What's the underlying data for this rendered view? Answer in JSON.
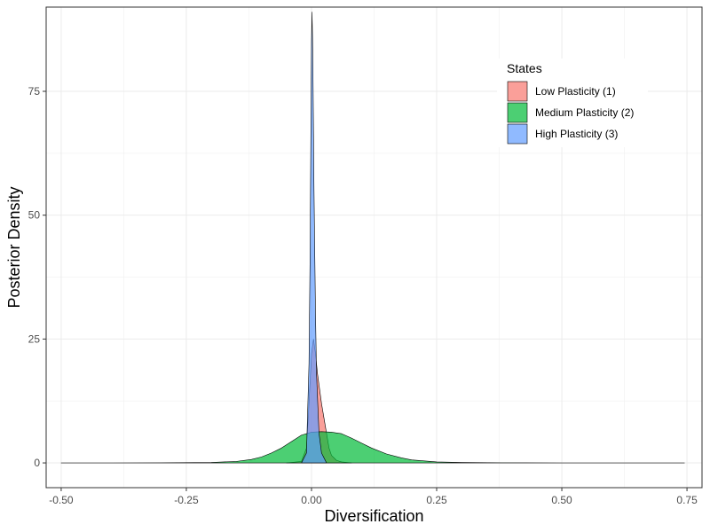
{
  "chart_data": {
    "type": "area",
    "subtype": "density",
    "xlabel": "Diversification",
    "ylabel": "Posterior Density",
    "xlim": [
      -0.53,
      0.78
    ],
    "ylim": [
      -5,
      92
    ],
    "x_ticks": [
      -0.5,
      -0.25,
      0.0,
      0.25,
      0.5,
      0.75
    ],
    "x_tick_labels": [
      "-0.50",
      "-0.25",
      "0.00",
      "0.25",
      "0.50",
      "0.75"
    ],
    "y_ticks": [
      0,
      25,
      50,
      75
    ],
    "y_tick_labels": [
      "0",
      "25",
      "50",
      "75"
    ],
    "grid": true,
    "legend": {
      "title": "States",
      "position": "top-right"
    },
    "series": [
      {
        "name": "Low Plasticity (1)",
        "color": "#F8766D",
        "x": [
          -0.05,
          -0.02,
          -0.01,
          -0.005,
          0.0,
          0.004,
          0.008,
          0.012,
          0.016,
          0.02,
          0.025,
          0.03,
          0.035,
          0.04,
          0.05,
          0.06,
          0.08
        ],
        "y": [
          0,
          0.3,
          3,
          12,
          22,
          25,
          22,
          18,
          15,
          12,
          9,
          6,
          3,
          1.5,
          0.5,
          0.2,
          0
        ]
      },
      {
        "name": "Medium Plasticity (2)",
        "color": "#00BA38",
        "x": [
          -0.5,
          -0.3,
          -0.2,
          -0.15,
          -0.12,
          -0.1,
          -0.08,
          -0.06,
          -0.04,
          -0.02,
          0.0,
          0.02,
          0.04,
          0.06,
          0.08,
          0.1,
          0.12,
          0.15,
          0.18,
          0.2,
          0.25,
          0.3,
          0.38,
          0.43,
          0.5,
          0.6,
          0.745
        ],
        "y": [
          0,
          0.02,
          0.1,
          0.3,
          0.7,
          1.2,
          2.0,
          3.0,
          4.3,
          5.6,
          6.2,
          6.3,
          6.2,
          5.9,
          5.0,
          4.0,
          3.0,
          1.8,
          1.0,
          0.6,
          0.2,
          0.08,
          0.03,
          0.02,
          0.01,
          0.005,
          0
        ]
      },
      {
        "name": "High Plasticity (3)",
        "color": "#619CFF",
        "x": [
          -0.02,
          -0.01,
          -0.005,
          -0.003,
          -0.001,
          0.0,
          0.001,
          0.002,
          0.003,
          0.005,
          0.008,
          0.01,
          0.015,
          0.02,
          0.03
        ],
        "y": [
          0,
          2,
          20,
          40,
          70,
          85,
          91,
          86,
          78,
          55,
          30,
          18,
          6,
          2,
          0
        ]
      }
    ]
  }
}
